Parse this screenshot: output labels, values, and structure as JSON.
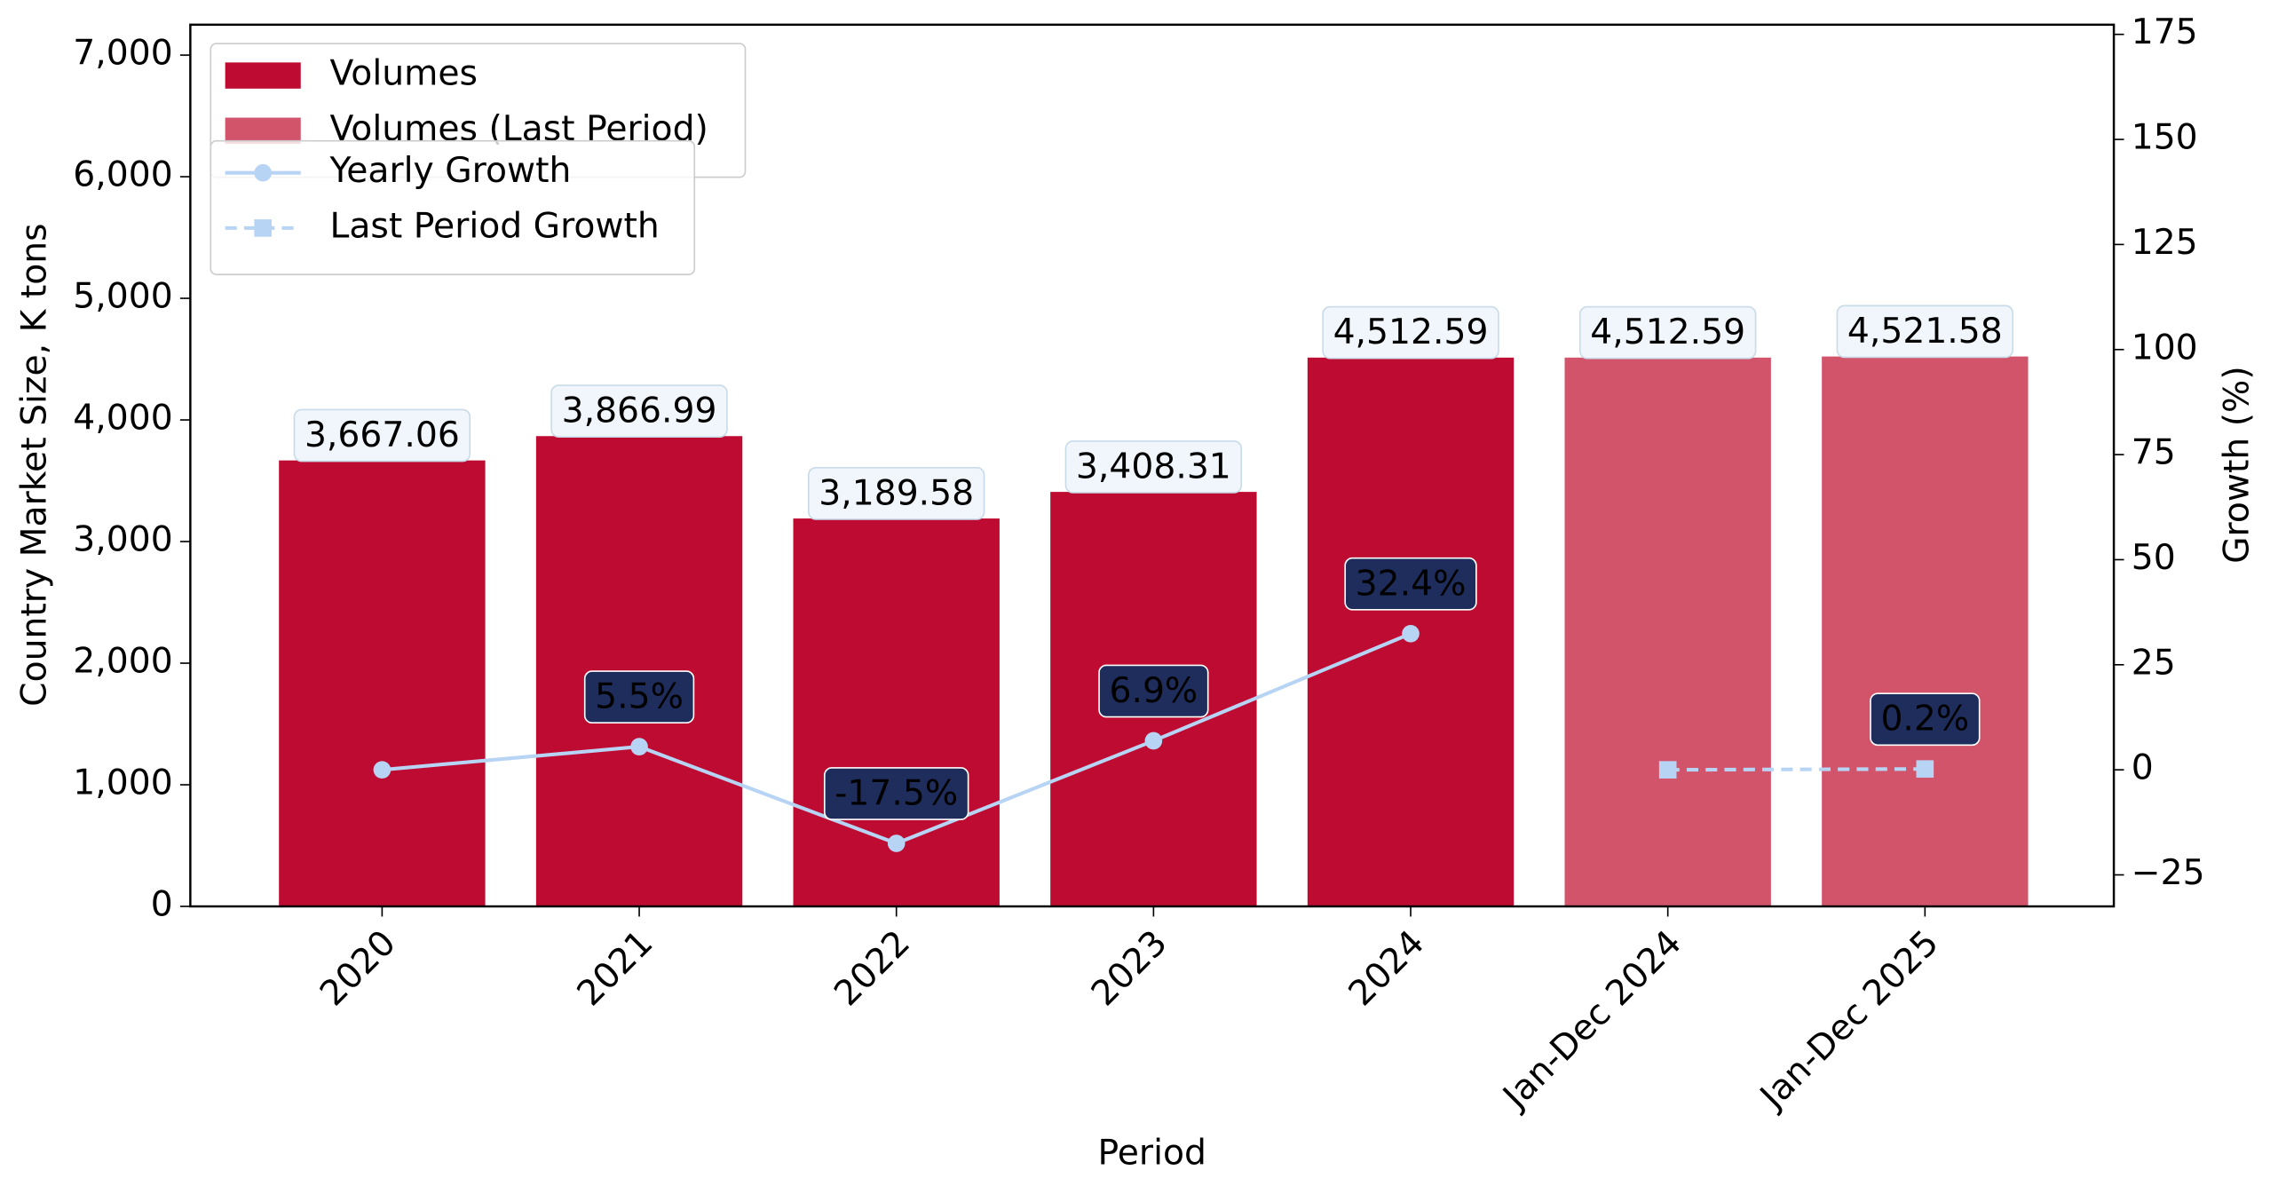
{
  "chart_data": {
    "type": "bar",
    "x_label": "Period",
    "y_label": "Country Market Size, K tons",
    "y2_label": "Growth (%)",
    "categories": [
      "2020",
      "2021",
      "2022",
      "2023",
      "2024",
      "Jan-Dec 2024",
      "Jan-Dec 2025"
    ],
    "series": [
      {
        "name": "Volumes",
        "type": "bar",
        "color": "#be0b31",
        "values": [
          3667.06,
          3866.99,
          3189.58,
          3408.31,
          4512.59,
          null,
          null
        ],
        "value_labels": [
          "3,667.06",
          "3,866.99",
          "3,189.58",
          "3,408.31",
          "4,512.59",
          null,
          null
        ]
      },
      {
        "name": "Volumes (Last Period)",
        "type": "bar",
        "color": "#d1546b",
        "values": [
          null,
          null,
          null,
          null,
          null,
          4512.59,
          4521.58
        ],
        "value_labels": [
          null,
          null,
          null,
          null,
          null,
          "4,512.59",
          "4,521.58"
        ]
      },
      {
        "name": "Yearly Growth",
        "type": "line",
        "axis": "y2",
        "color": "#b8d4f5",
        "linestyle": "solid",
        "marker": "circle",
        "values": [
          0,
          5.5,
          -17.5,
          6.9,
          32.4,
          null,
          null
        ],
        "value_labels": [
          null,
          "5.5%",
          "-17.5%",
          "6.9%",
          "32.4%",
          null,
          null
        ]
      },
      {
        "name": "Last Period Growth",
        "type": "line",
        "axis": "y2",
        "color": "#b8d4f5",
        "linestyle": "dashed",
        "marker": "square",
        "values": [
          null,
          null,
          null,
          null,
          null,
          0,
          0.2
        ],
        "value_labels": [
          null,
          null,
          null,
          null,
          null,
          null,
          "0.2%"
        ]
      }
    ],
    "ylim": [
      0,
      7250
    ],
    "yticks": [
      0,
      {
        "value": 1000,
        "label": "1,000"
      },
      {
        "value": 2000,
        "label": "2,000"
      },
      {
        "value": 3000,
        "label": "3,000"
      },
      {
        "value": 4000,
        "label": "4,000"
      },
      {
        "value": 5000,
        "label": "5,000"
      },
      {
        "value": 6000,
        "label": "6,000"
      },
      {
        "value": 7000,
        "label": "7,000"
      }
    ],
    "y2lim": [
      -32.5,
      177.3
    ],
    "y2ticks": [
      {
        "value": -25,
        "label": "−25"
      },
      0,
      25,
      50,
      75,
      100,
      125,
      150,
      175
    ],
    "y_color": "#0000cd",
    "y2_color": "#ff0000",
    "grid": false,
    "legend": "upper left"
  }
}
